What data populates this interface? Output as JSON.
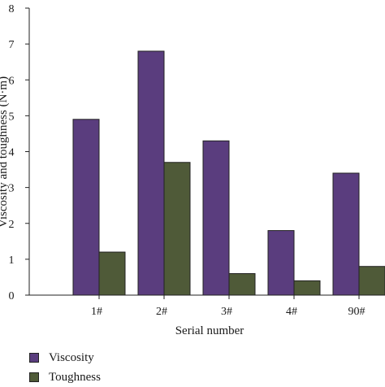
{
  "chart_data": {
    "type": "bar",
    "categories": [
      "1#",
      "2#",
      "3#",
      "4#",
      "90#"
    ],
    "series": [
      {
        "name": "Viscosity",
        "values": [
          4.9,
          6.8,
          4.3,
          1.8,
          3.4
        ],
        "color": "#5a3d7e"
      },
      {
        "name": "Toughness",
        "values": [
          1.2,
          3.7,
          0.6,
          0.4,
          0.8
        ],
        "color": "#4f5a38"
      }
    ],
    "xlabel": "Serial number",
    "ylabel": "Viscosity and toughness (N·m)",
    "ylim": [
      0,
      8
    ],
    "yticks": [
      "0",
      "1",
      "2",
      "3",
      "4",
      "5",
      "6",
      "7",
      "8"
    ],
    "grid": false,
    "legend_position": "bottom-left"
  }
}
